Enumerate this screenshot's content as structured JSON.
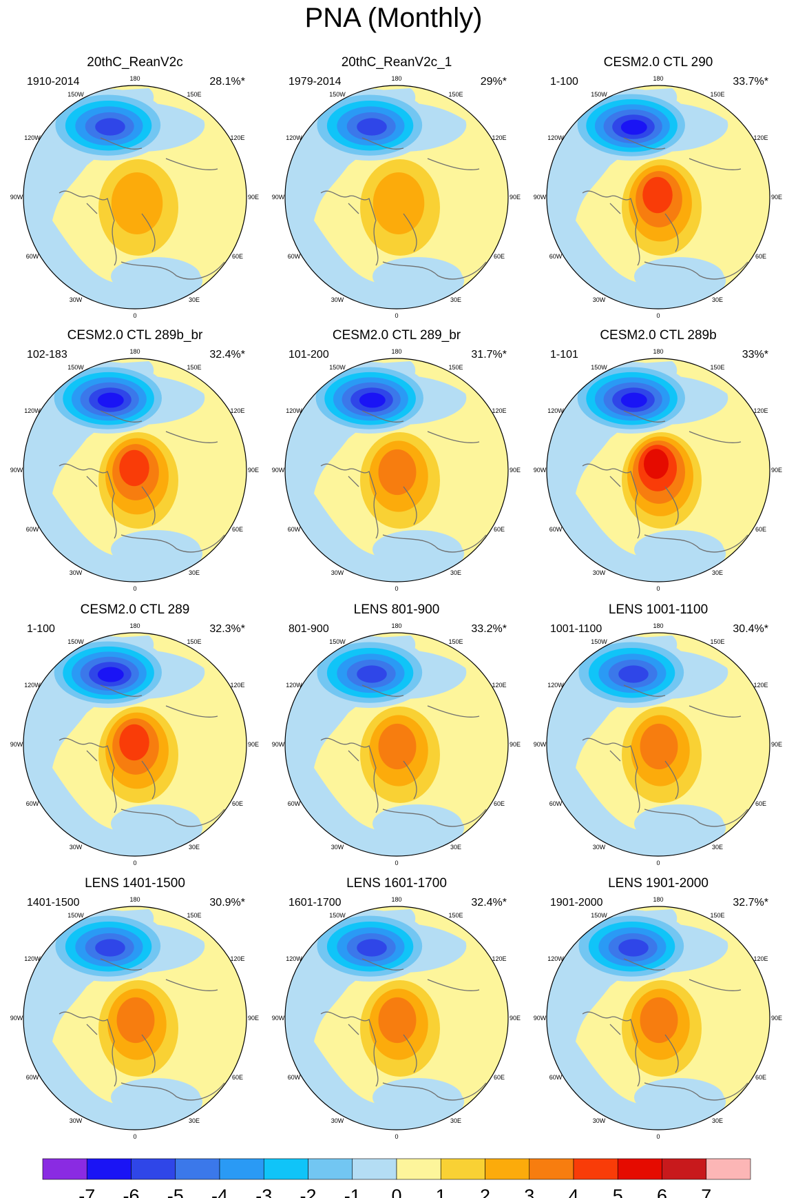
{
  "title": "PNA (Monthly)",
  "panels": [
    {
      "title": "20thC_ReanV2c",
      "period": "1910-2014",
      "pct": "28.1%*"
    },
    {
      "title": "20thC_ReanV2c_1",
      "period": "1979-2014",
      "pct": "29%*"
    },
    {
      "title": "CESM2.0 CTL 290",
      "period": "1-100",
      "pct": "33.7%*"
    },
    {
      "title": "CESM2.0 CTL 289b_br",
      "period": "102-183",
      "pct": "32.4%*"
    },
    {
      "title": "CESM2.0 CTL 289_br",
      "period": "101-200",
      "pct": "31.7%*"
    },
    {
      "title": "CESM2.0 CTL 289b",
      "period": "1-101",
      "pct": "33%*"
    },
    {
      "title": "CESM2.0 CTL 289",
      "period": "1-100",
      "pct": "32.3%*"
    },
    {
      "title": "LENS 801-900",
      "period": "801-900",
      "pct": "33.2%*"
    },
    {
      "title": "LENS 1001-1100",
      "period": "1001-1100",
      "pct": "30.4%*"
    },
    {
      "title": "LENS 1401-1500",
      "period": "1401-1500",
      "pct": "30.9%*"
    },
    {
      "title": "LENS 1601-1700",
      "period": "1601-1700",
      "pct": "32.4%*"
    },
    {
      "title": "LENS 1901-2000",
      "period": "1901-2000",
      "pct": "32.7%*"
    }
  ],
  "longitude_labels": [
    "180",
    "150E",
    "120E",
    "90E",
    "60E",
    "30E",
    "0",
    "30W",
    "60W",
    "90W",
    "120W",
    "150W"
  ],
  "colorbar": {
    "colors": [
      "#8a2be2",
      "#1a14f5",
      "#2f46e8",
      "#3b78ea",
      "#2a9af5",
      "#10c4f8",
      "#72c6f2",
      "#b4ddf4",
      "#fdf59b",
      "#f9d134",
      "#fcab0b",
      "#f77d0f",
      "#f93c08",
      "#e50b00",
      "#c8191c",
      "#fcb6b6"
    ],
    "labels": [
      "-7",
      "-6",
      "-5",
      "-4",
      "-3",
      "-2",
      "-1",
      "0",
      "1",
      "2",
      "3",
      "4",
      "5",
      "6",
      "7"
    ]
  },
  "chart_data": {
    "type": "heatmap",
    "title": "PNA (Monthly)",
    "projection": "north polar stereographic",
    "levels": [
      -7,
      -6,
      -5,
      -4,
      -3,
      -2,
      -1,
      0,
      1,
      2,
      3,
      4,
      5,
      6,
      7
    ],
    "panels": [
      {
        "name": "20thC_ReanV2c",
        "period": "1910-2014",
        "variance_explained": "28.1%*",
        "min_level": -6,
        "max_level": 2
      },
      {
        "name": "20thC_ReanV2c_1",
        "period": "1979-2014",
        "variance_explained": "29%*",
        "min_level": -6,
        "max_level": 2
      },
      {
        "name": "CESM2.0 CTL 290",
        "period": "1-100",
        "variance_explained": "33.7%*",
        "min_level": -7,
        "max_level": 4
      },
      {
        "name": "CESM2.0 CTL 289b_br",
        "period": "102-183",
        "variance_explained": "32.4%*",
        "min_level": -7,
        "max_level": 4
      },
      {
        "name": "CESM2.0 CTL 289_br",
        "period": "101-200",
        "variance_explained": "31.7%*",
        "min_level": -7,
        "max_level": 3
      },
      {
        "name": "CESM2.0 CTL 289b",
        "period": "1-101",
        "variance_explained": "33%*",
        "min_level": -7,
        "max_level": 5
      },
      {
        "name": "CESM2.0 CTL 289",
        "period": "1-100",
        "variance_explained": "32.3%*",
        "min_level": -7,
        "max_level": 4
      },
      {
        "name": "LENS 801-900",
        "period": "801-900",
        "variance_explained": "33.2%*",
        "min_level": -6,
        "max_level": 3
      },
      {
        "name": "LENS 1001-1100",
        "period": "1001-1100",
        "variance_explained": "30.4%*",
        "min_level": -6,
        "max_level": 3
      },
      {
        "name": "LENS 1401-1500",
        "period": "1401-1500",
        "variance_explained": "30.9%*",
        "min_level": -6,
        "max_level": 3
      },
      {
        "name": "LENS 1601-1700",
        "period": "1601-1700",
        "variance_explained": "32.4%*",
        "min_level": -6,
        "max_level": 3
      },
      {
        "name": "LENS 1901-2000",
        "period": "1901-2000",
        "variance_explained": "32.7%*",
        "min_level": -6,
        "max_level": 3
      }
    ]
  }
}
